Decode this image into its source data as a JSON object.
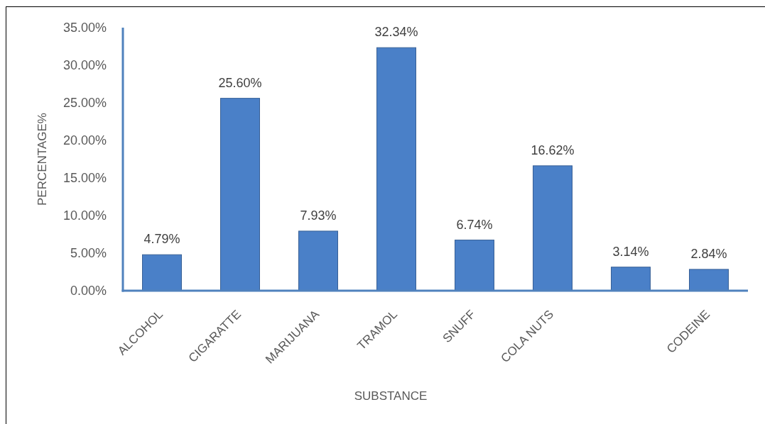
{
  "chart_data": {
    "type": "bar",
    "xlabel": "SUBSTANCE",
    "ylabel": "PERCENTAGE%",
    "categories": [
      "ALCOHOL",
      "CIGARATTE",
      "MARIJUANA",
      "TRAMOL",
      "SNUFF",
      "COLA NUTS",
      null,
      "CODEINE"
    ],
    "values": [
      4.79,
      25.6,
      7.93,
      32.34,
      6.74,
      16.62,
      3.14,
      2.84
    ],
    "value_labels": [
      "4.79%",
      "25.60%",
      "7.93%",
      "32.34%",
      "6.74%",
      "16.62%",
      "3.14%",
      "2.84%"
    ],
    "color": "#4a80c8",
    "ylim": [
      0,
      35
    ],
    "yticks": [
      {
        "value": 0,
        "label": "0.00%"
      },
      {
        "value": 5,
        "label": "5.00%"
      },
      {
        "value": 10,
        "label": "10.00%"
      },
      {
        "value": 15,
        "label": "15.00%"
      },
      {
        "value": 20,
        "label": "20.00%"
      },
      {
        "value": 25,
        "label": "25.00%"
      },
      {
        "value": 30,
        "label": "30.00%"
      },
      {
        "value": 35,
        "label": "35.00%"
      }
    ],
    "grid": false,
    "legend": false
  }
}
